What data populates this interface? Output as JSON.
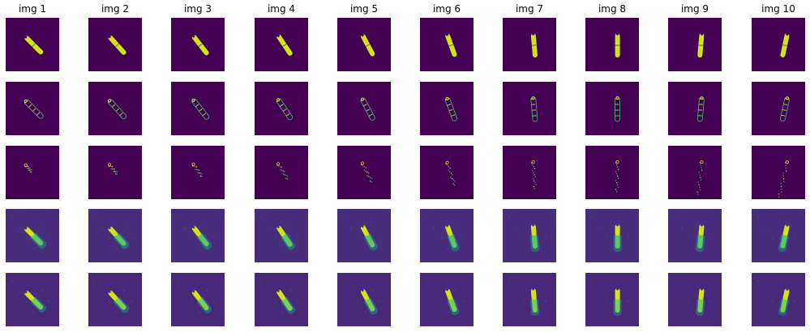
{
  "figure": {
    "column_titles": [
      "img 1",
      "img 2",
      "img 3",
      "img 4",
      "img 5",
      "img 6",
      "img 7",
      "img 8",
      "img 9",
      "img 10"
    ],
    "rows": [
      {
        "kind": "mask",
        "background": "#440154",
        "fill": "#d2e21b"
      },
      {
        "kind": "sparse_outline",
        "background": "#440154",
        "fill": "#3fbc73"
      },
      {
        "kind": "sparse_points",
        "background": "#440154",
        "fill": "#d2e21b"
      },
      {
        "kind": "reconstruction",
        "background": "#472d7b",
        "fill": "#5ec962"
      },
      {
        "kind": "reconstruction_bright",
        "background": "#482878",
        "fill": "#7ad151"
      }
    ],
    "stick_angles_deg": [
      -45,
      -42,
      -38,
      -34,
      -28,
      -20,
      -5,
      0,
      5,
      12
    ]
  }
}
